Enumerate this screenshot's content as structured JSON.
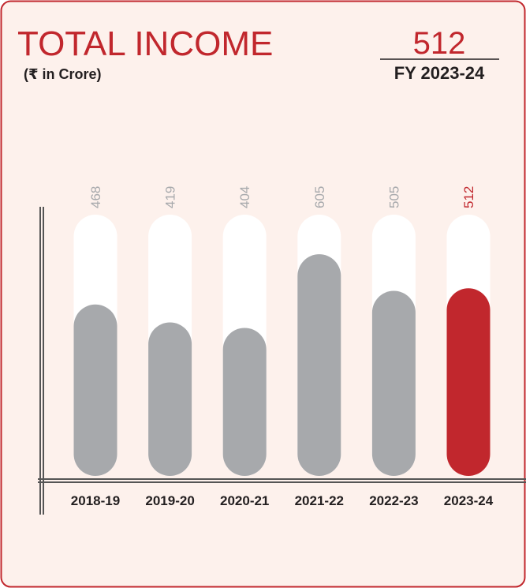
{
  "chart_data": {
    "type": "bar",
    "title": "TOTAL INCOME",
    "subtitle": "(₹ in Crore)",
    "highlight_value": 512,
    "highlight_label": "FY 2023-24",
    "categories": [
      "2018-19",
      "2019-20",
      "2020-21",
      "2021-22",
      "2022-23",
      "2023-24"
    ],
    "values": [
      468,
      419,
      404,
      605,
      505,
      512
    ],
    "colors": [
      "#a7a9ac",
      "#a7a9ac",
      "#a7a9ac",
      "#a7a9ac",
      "#a7a9ac",
      "#c1272d"
    ],
    "label_colors": [
      "#a7a9ac",
      "#a7a9ac",
      "#a7a9ac",
      "#a7a9ac",
      "#a7a9ac",
      "#c1272d"
    ],
    "ylim": [
      0,
      713
    ]
  }
}
